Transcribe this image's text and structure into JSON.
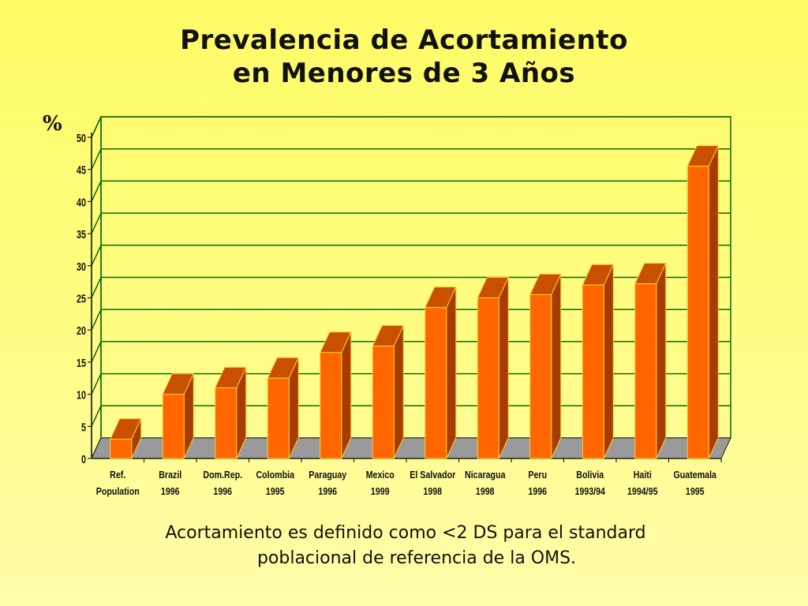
{
  "page": {
    "title_line1": "Prevalencia de Acortamiento",
    "title_line2": "en Menores de 3 Años",
    "unit_label": "%",
    "footnote_line1": "Acortamiento es definido como <2 DS para el standard",
    "footnote_line2": "poblacional de referencia de la OMS."
  },
  "colors": {
    "bar_front": "#ff6600",
    "bar_side": "#a63c00",
    "bar_top": "#c85000",
    "bar_edge": "#ffcc33",
    "grid": "#0a6a0a",
    "floor": "#9a9a9a",
    "background": "#fffb66"
  },
  "chart_data": {
    "type": "bar",
    "title": "Prevalencia de Acortamiento en Menores de 3 Años",
    "ylabel": "%",
    "xlabel": "",
    "ylim": [
      0,
      50
    ],
    "yticks": [
      0,
      5,
      10,
      15,
      20,
      25,
      30,
      35,
      40,
      45,
      50
    ],
    "grid": true,
    "categories": [
      {
        "line1": "Ref.",
        "line2": "Population"
      },
      {
        "line1": "Brazil",
        "line2": "1996"
      },
      {
        "line1": "Dom.Rep.",
        "line2": "1996"
      },
      {
        "line1": "Colombia",
        "line2": "1995"
      },
      {
        "line1": "Paraguay",
        "line2": "1996"
      },
      {
        "line1": "Mexico",
        "line2": "1999"
      },
      {
        "line1": "El Salvador",
        "line2": "1998"
      },
      {
        "line1": "Nicaragua",
        "line2": "1998"
      },
      {
        "line1": "Peru",
        "line2": "1996"
      },
      {
        "line1": "Bolivia",
        "line2": "1993/94"
      },
      {
        "line1": "Haiti",
        "line2": "1994/95"
      },
      {
        "line1": "Guatemala",
        "line2": "1995"
      }
    ],
    "values": [
      3,
      10,
      11,
      12.5,
      16.5,
      17.5,
      23.5,
      25,
      25.5,
      27,
      27.2,
      45.5
    ]
  }
}
